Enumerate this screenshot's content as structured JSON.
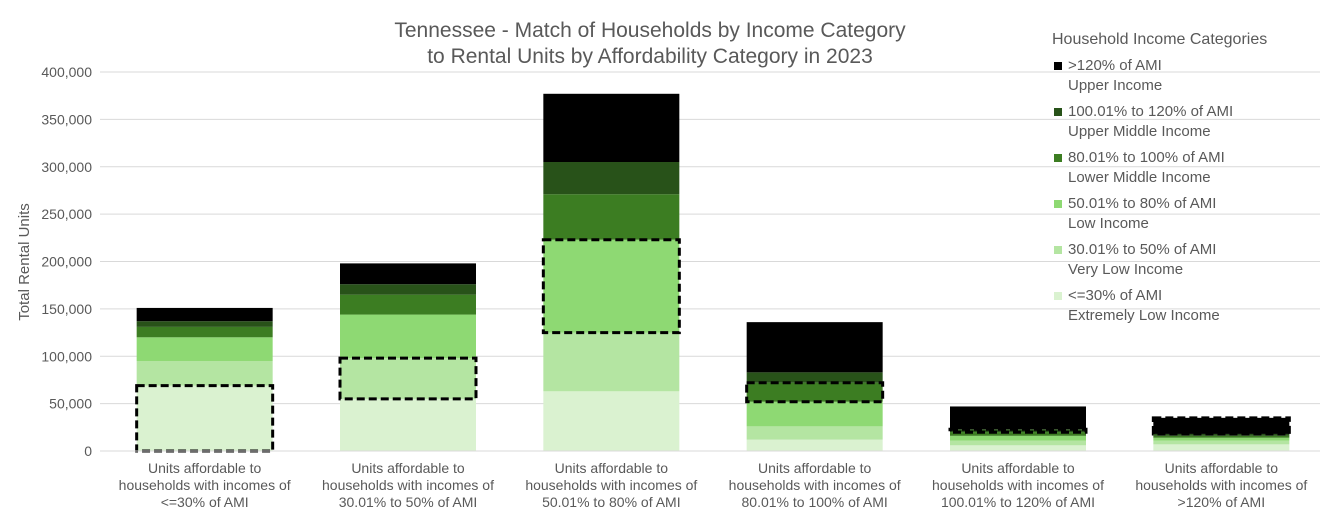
{
  "chart_data": {
    "type": "bar",
    "stacked": true,
    "title": "Tennessee - Match of Households by Income Category\nto Rental Units by Affordability Category in 2023",
    "ylabel": "Total Rental Units",
    "xlabel": "",
    "ylim": [
      0,
      400000
    ],
    "yticks": [
      0,
      50000,
      100000,
      150000,
      200000,
      250000,
      300000,
      350000,
      400000
    ],
    "ytick_labels": [
      "0",
      "50,000",
      "100,000",
      "150,000",
      "200,000",
      "250,000",
      "300,000",
      "350,000",
      "400,000"
    ],
    "grid": true,
    "legend_title": "Household Income Categories",
    "legend_position": "right",
    "categories": [
      "Units affordable to households with incomes of <=30% of AMI",
      "Units affordable to households with incomes of 30.01% to 50% of AMI",
      "Units affordable to households with incomes of 50.01% to 80% of AMI",
      "Units affordable to households with incomes of 80.01% to 100% of AMI",
      "Units affordable to households with incomes of 100.01% to 120% of AMI",
      "Units affordable to households with incomes of >120% of AMI"
    ],
    "series": [
      {
        "name": "<=30% of AMI\nExtremely Low Income",
        "color": "#daf2d0",
        "values": [
          69000,
          55000,
          63000,
          12000,
          6000,
          7000
        ]
      },
      {
        "name": "30.01% to 50% of AMI\nVery Low Income",
        "color": "#b4e5a2",
        "values": [
          26000,
          43000,
          62000,
          14000,
          5000,
          4000
        ]
      },
      {
        "name": "50.01% to 80% of AMI\nLow Income",
        "color": "#8ed973",
        "values": [
          25000,
          46000,
          98000,
          26000,
          5000,
          3000
        ]
      },
      {
        "name": "80.01% to 100% of AMI\nLower Middle Income",
        "color": "#3c7d22",
        "values": [
          11000,
          21000,
          48000,
          20000,
          4000,
          2000
        ]
      },
      {
        "name": "100.01% to 120% of AMI\nUpper Middle Income",
        "color": "#285219",
        "values": [
          6000,
          11000,
          34000,
          11000,
          3000,
          2000
        ]
      },
      {
        "name": ">120% of AMI\nUpper Income",
        "color": "#000000",
        "values": [
          14000,
          22000,
          72000,
          53000,
          24000,
          17000
        ]
      }
    ]
  }
}
